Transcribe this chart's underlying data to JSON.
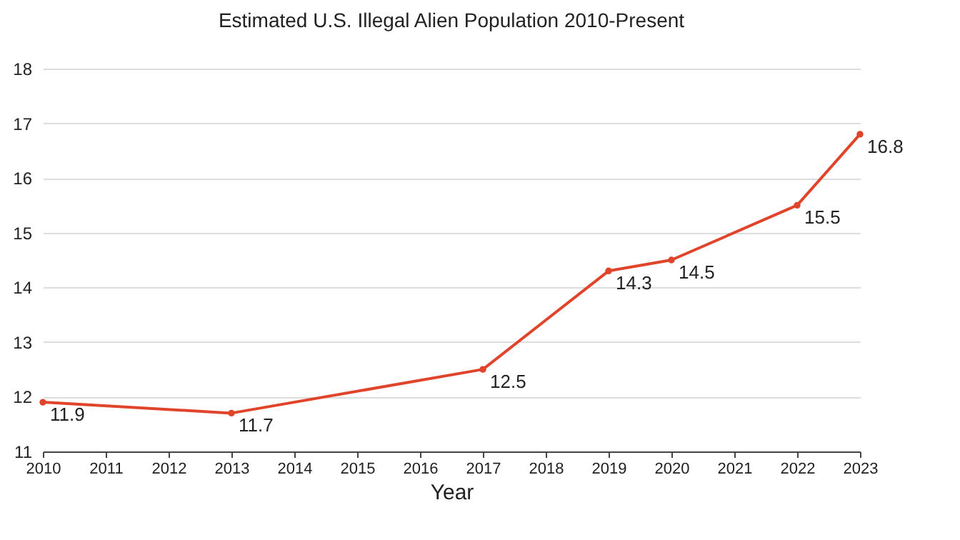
{
  "chart_data": {
    "type": "line",
    "title": "Estimated U.S. Illegal Alien Population 2010-Present",
    "xlabel": "Year",
    "x": [
      2010,
      2013,
      2017,
      2019,
      2020,
      2022,
      2023
    ],
    "series": [
      {
        "color": "#e0452c",
        "values": [
          11.9,
          11.7,
          12.5,
          14.3,
          14.5,
          15.5,
          16.8
        ]
      }
    ],
    "xlim": [
      2010,
      2023
    ],
    "xticks": [
      2010,
      2011,
      2012,
      2013,
      2014,
      2015,
      2016,
      2017,
      2018,
      2019,
      2020,
      2021,
      2022,
      2023
    ],
    "ylim": [
      11,
      18
    ],
    "yticks": [
      11,
      12,
      13,
      14,
      15,
      16,
      17,
      18
    ],
    "grid": "y",
    "marker": "circle",
    "data_labels": true
  }
}
